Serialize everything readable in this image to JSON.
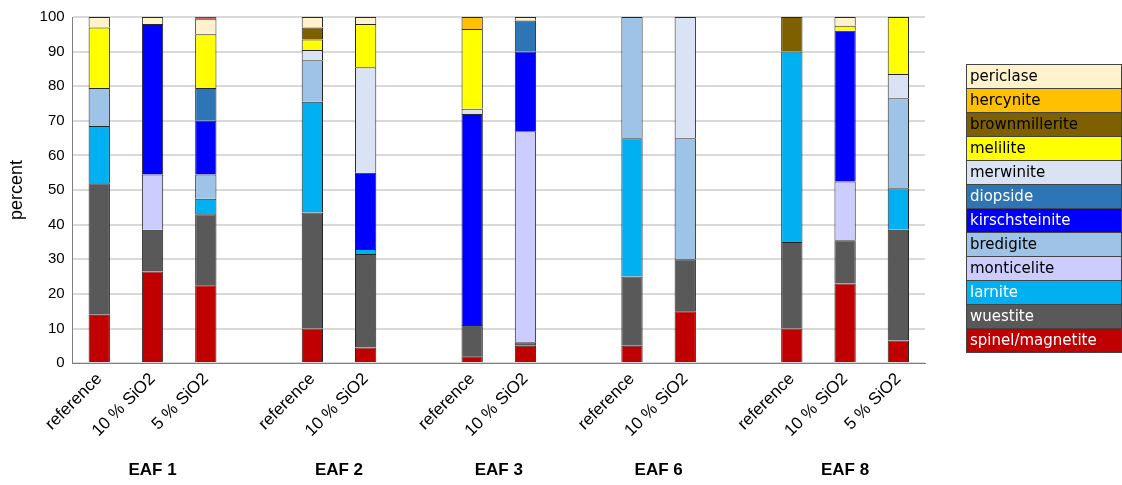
{
  "chart_data": {
    "type": "bar",
    "stacked": true,
    "ylabel": "percent",
    "categories": [
      "reference",
      "10 % SiO2",
      "5 % SiO2",
      null,
      "reference",
      "10 % SiO2",
      null,
      "reference",
      "10 % SiO2",
      null,
      "reference",
      "10 % SiO2",
      null,
      "reference",
      "10 % SiO2",
      "5 % SiO2"
    ],
    "ylim": [
      0,
      100
    ],
    "yticks": [
      0,
      10,
      20,
      30,
      40,
      50,
      60,
      70,
      80,
      90,
      100
    ],
    "grid": "y",
    "legend": "right",
    "annotations": [
      "EAF 1",
      "EAF 2",
      "EAF 3",
      "EAF 6",
      "EAF 8"
    ],
    "series": [
      {
        "name": "spinel/magnetite",
        "color": "#c00000",
        "values": [
          14,
          26.5,
          22.5,
          null,
          10,
          4.5,
          null,
          2,
          5,
          null,
          5,
          15,
          null,
          10,
          23,
          6.5
        ]
      },
      {
        "name": "wuestite",
        "color": "#595959",
        "values": [
          38,
          12,
          20.5,
          null,
          33.5,
          27,
          null,
          9,
          1,
          null,
          20,
          15,
          null,
          25,
          12.5,
          32
        ]
      },
      {
        "name": "larnite",
        "color": "#00b0f0",
        "values": [
          16.5,
          null,
          4.5,
          null,
          32,
          1.5,
          null,
          null,
          null,
          null,
          40,
          null,
          null,
          55,
          null,
          12
        ]
      },
      {
        "name": "monticelite",
        "color": "#ccccff",
        "values": [
          null,
          16,
          null,
          null,
          null,
          null,
          null,
          null,
          61,
          null,
          null,
          null,
          null,
          null,
          17,
          null
        ]
      },
      {
        "name": "bredigite",
        "color": "#9dc3e6",
        "values": [
          11,
          null,
          7,
          null,
          12,
          null,
          null,
          null,
          null,
          null,
          35,
          35,
          null,
          null,
          null,
          26
        ]
      },
      {
        "name": "kirschsteinite",
        "color": "#0000ff",
        "values": [
          null,
          43.5,
          15.5,
          null,
          null,
          22,
          null,
          61,
          23,
          null,
          null,
          null,
          null,
          null,
          43.5,
          null
        ]
      },
      {
        "name": "diopside",
        "color": "#2e75b6",
        "values": [
          null,
          null,
          9.5,
          null,
          null,
          null,
          null,
          null,
          9,
          null,
          null,
          null,
          null,
          null,
          null,
          null
        ]
      },
      {
        "name": "merwinite",
        "color": "#dae3f3",
        "values": [
          null,
          null,
          null,
          null,
          3,
          30.5,
          null,
          1.5,
          null,
          null,
          null,
          35,
          null,
          null,
          null,
          7
        ]
      },
      {
        "name": "melilite",
        "color": "#ffff00",
        "values": [
          17.5,
          null,
          15.5,
          null,
          3,
          12.5,
          null,
          23,
          null,
          null,
          null,
          null,
          null,
          null,
          1.5,
          16.5
        ]
      },
      {
        "name": "brownmillerite",
        "color": "#7f6000",
        "values": [
          null,
          null,
          null,
          null,
          3.5,
          null,
          null,
          null,
          null,
          null,
          null,
          null,
          null,
          10,
          null,
          null
        ]
      },
      {
        "name": "hercynite",
        "color": "#ffc000",
        "values": [
          null,
          null,
          null,
          null,
          null,
          null,
          null,
          3.5,
          null,
          null,
          null,
          null,
          null,
          null,
          null,
          null
        ]
      },
      {
        "name": "periclase",
        "color": "#fff2cc",
        "values": [
          3,
          2,
          4.5,
          null,
          3,
          2,
          null,
          null,
          1,
          null,
          null,
          null,
          null,
          null,
          2.5,
          null
        ]
      },
      {
        "color": "#c00000",
        "values": [
          null,
          null,
          0.5,
          null,
          null,
          null,
          null,
          null,
          null,
          null,
          null,
          null,
          null,
          null,
          null,
          null
        ]
      }
    ]
  }
}
